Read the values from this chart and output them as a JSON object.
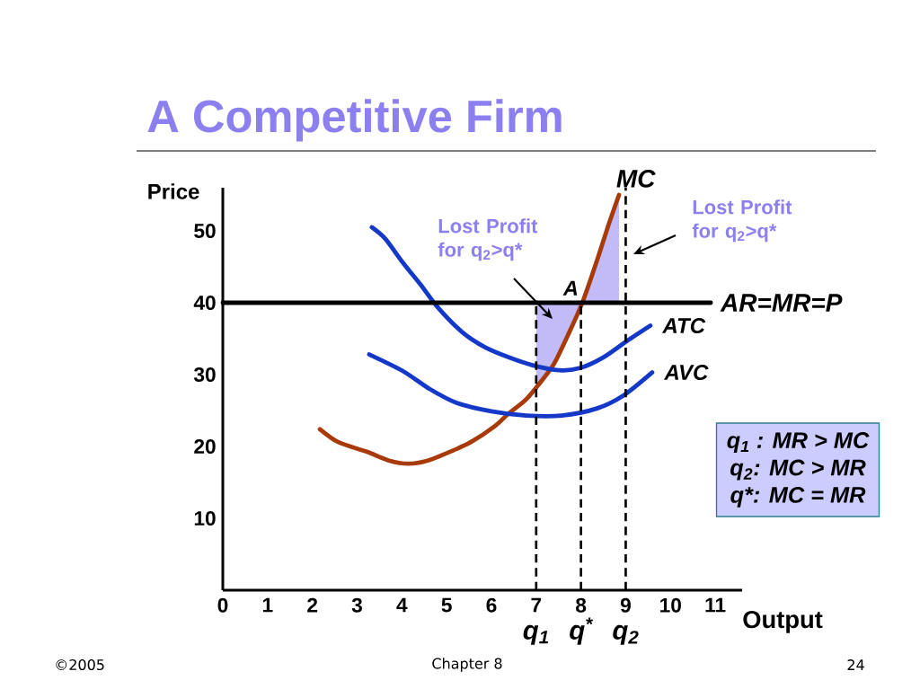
{
  "chart_data": {
    "type": "line",
    "title": "A Competitive Firm",
    "xlabel": "Output",
    "ylabel": "Price",
    "xlim": [
      0,
      11.6
    ],
    "ylim": [
      0,
      56
    ],
    "xticks": [
      0,
      1,
      2,
      3,
      4,
      5,
      6,
      7,
      8,
      9,
      10,
      11
    ],
    "yticks": [
      10,
      20,
      30,
      40,
      50
    ],
    "series": [
      {
        "name": "MC",
        "color": "#a83a0a",
        "x": [
          2.17,
          2.58,
          3.2,
          3.73,
          4.14,
          4.56,
          5.09,
          5.54,
          6.07,
          6.37,
          6.75,
          7,
          7.38,
          7.71,
          8.03,
          8.36,
          8.62,
          8.85
        ],
        "values": [
          22.4,
          20.6,
          19.3,
          18,
          17.6,
          18,
          19.3,
          20.6,
          22.8,
          24.5,
          26.4,
          28.2,
          31.3,
          35.5,
          40,
          45.9,
          50.9,
          55
        ],
        "lower": [
          null,
          null,
          null,
          null,
          null,
          null,
          null,
          null,
          null,
          null,
          null,
          28.2,
          31.3,
          35.5,
          40,
          40,
          40,
          40
        ],
        "upper": [
          null,
          null,
          null,
          null,
          null,
          null,
          null,
          null,
          null,
          null,
          null,
          40,
          40,
          40,
          40,
          45.9,
          50.9,
          55
        ]
      },
      {
        "name": "ATC",
        "color": "#1438c8",
        "x": [
          3.33,
          3.63,
          4.02,
          4.42,
          4.81,
          5.35,
          5.86,
          6.39,
          6.92,
          7.51,
          7.97,
          8.5,
          9.01,
          9.55
        ],
        "values": [
          50.5,
          48.9,
          45.6,
          42.5,
          39.3,
          35.9,
          33.8,
          32.4,
          31.3,
          30.6,
          30.9,
          32.4,
          34.6,
          36.8
        ]
      },
      {
        "name": "AVC",
        "color": "#1438c8",
        "x": [
          3.27,
          4.02,
          4.62,
          5.21,
          6,
          6.78,
          7.57,
          8.36,
          8.95,
          9.59
        ],
        "values": [
          32.8,
          30.5,
          28,
          26.1,
          24.9,
          24.3,
          24.3,
          25.3,
          27.1,
          30.3
        ]
      },
      {
        "name": "AR=MR=P",
        "color": "#000000",
        "x": [
          0,
          10.9
        ],
        "values": [
          40,
          40
        ]
      }
    ],
    "ref_lines": [
      {
        "axis": "x",
        "value": 7,
        "label": "q$_{1}$",
        "color": "#000000",
        "line_style": "dashed"
      },
      {
        "axis": "x",
        "value": 8,
        "label": "q$^{*}$",
        "color": "#000000",
        "line_style": "dashed"
      },
      {
        "axis": "x",
        "value": 9,
        "label": "q$_{2}$",
        "color": "#000000",
        "line_style": "dashed"
      }
    ],
    "annotations": [
      {
        "text": "A",
        "x": 8.03,
        "y": 40
      },
      "Lost Profit for q$_{2}$>q*",
      "Lost Profit for q$_{2}$>q*",
      "q$_{1}$ : MR > MC",
      "q$_{2}$: MC > MR",
      "q*: MC = MR",
      "©2005",
      "Chapter 8",
      "24"
    ]
  }
}
